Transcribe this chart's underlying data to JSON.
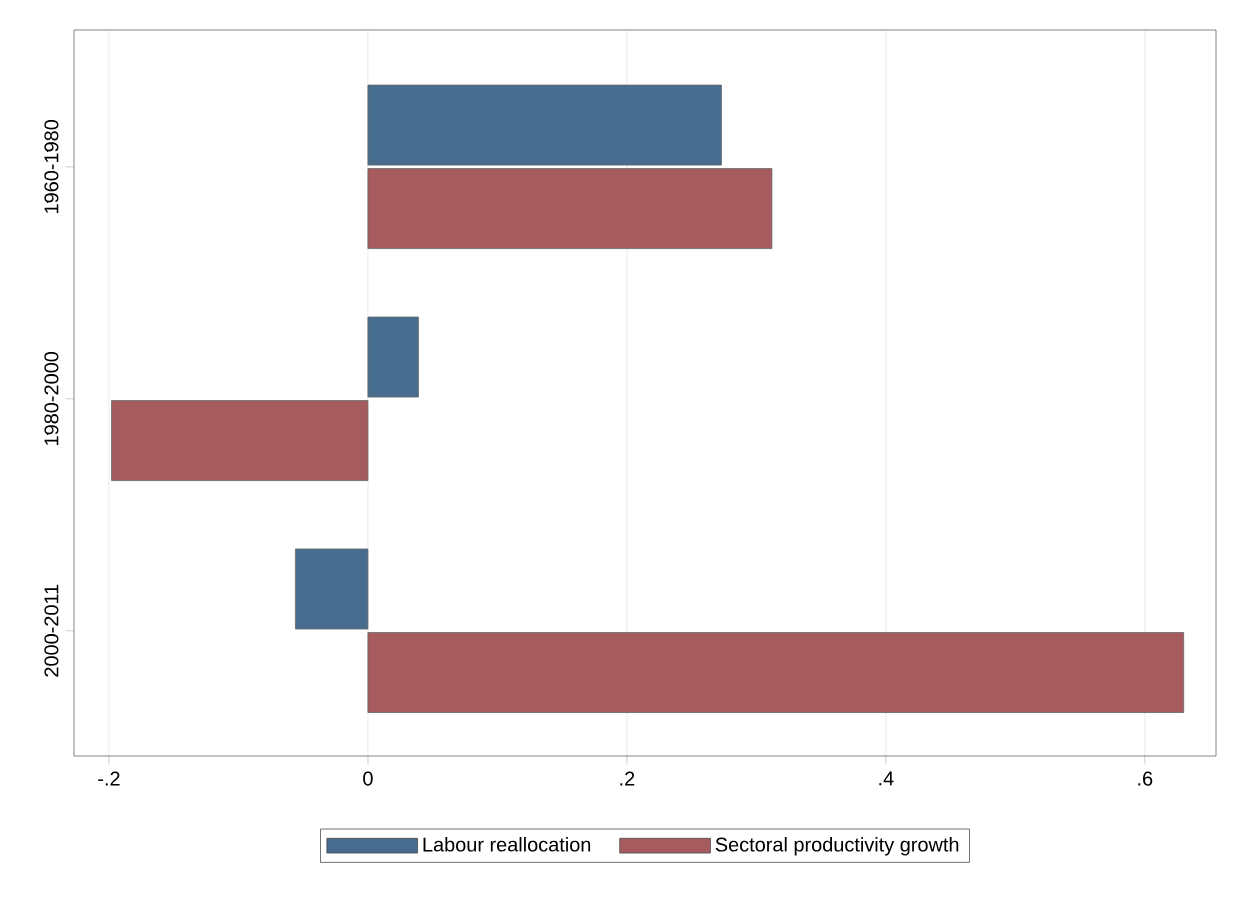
{
  "chart_data": {
    "type": "bar",
    "orientation": "horizontal",
    "categories": [
      "1960-1980",
      "1980-2000",
      "2000-2011"
    ],
    "series": [
      {
        "name": "Labour reallocation",
        "color": "#476d8e",
        "values": [
          0.273,
          0.039,
          -0.056
        ]
      },
      {
        "name": "Sectoral productivity growth",
        "color": "#a65b5f",
        "values": [
          0.312,
          -0.198,
          0.63
        ]
      }
    ],
    "xlim": [
      -0.227,
      0.655
    ],
    "xticks": [
      {
        "value": -0.2,
        "label": "-.2"
      },
      0,
      {
        "value": 0.2,
        "label": ".2"
      },
      {
        "value": 0.4,
        "label": ".4"
      },
      {
        "value": 0.6,
        "label": ".6"
      }
    ],
    "grid": "x",
    "legend": "bottom"
  }
}
